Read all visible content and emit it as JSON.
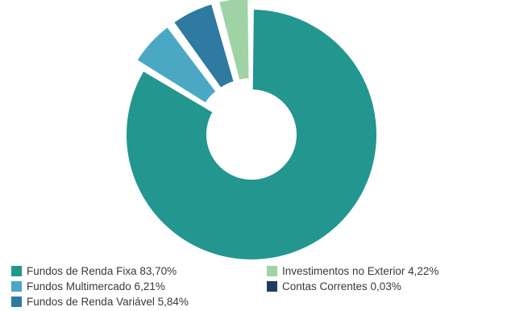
{
  "chart_data": {
    "type": "pie",
    "donut": true,
    "title": "",
    "slices": [
      {
        "label": "Fundos de Renda Fixa",
        "value": 83.7,
        "value_label": "83,70%",
        "color": "#23968f",
        "exploded": false
      },
      {
        "label": "Fundos Multimercado",
        "value": 6.21,
        "value_label": "6,21%",
        "color": "#4aa8c4",
        "exploded": true
      },
      {
        "label": "Fundos de Renda Variável",
        "value": 5.84,
        "value_label": "5,84%",
        "color": "#2e7aa0",
        "exploded": true
      },
      {
        "label": "Contas Correntes",
        "value": 0.03,
        "value_label": "0,03%",
        "color": "#1d3e63",
        "exploded": true
      },
      {
        "label": "Investimentos no Exterior",
        "value": 4.22,
        "value_label": "4,22%",
        "color": "#9fd3a6",
        "exploded": true
      }
    ],
    "legend": {
      "placement": "bottom",
      "items": [
        {
          "text": "Fundos de Renda Fixa 83,70%",
          "color": "#23968f"
        },
        {
          "text": "Investimentos no Exterior 4,22%",
          "color": "#9fd3a6"
        },
        {
          "text": "Fundos Multimercado 6,21%",
          "color": "#4aa8c4"
        },
        {
          "text": "Contas Correntes 0,03%",
          "color": "#1d3e63"
        },
        {
          "text": "Fundos de Renda Variável 5,84%",
          "color": "#2e7aa0"
        }
      ]
    }
  }
}
